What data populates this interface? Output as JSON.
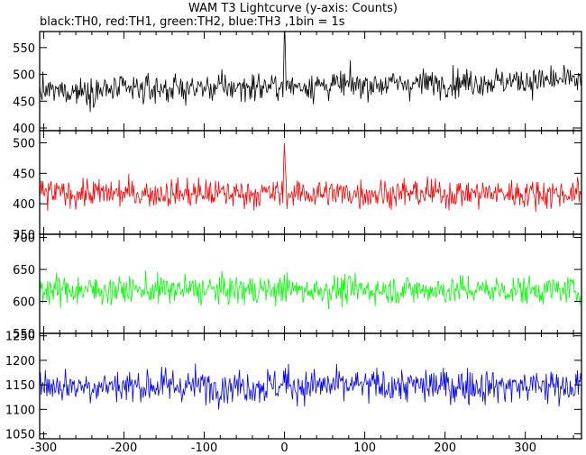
{
  "chart_data": {
    "type": "line",
    "title": "WAM T3 Lightcurve (y-axis: Counts)",
    "subtitle": "black:TH0, red:TH1, green:TH2, blue:TH3 ,1bin = 1s",
    "xlim": [
      -305,
      370
    ],
    "xticks": [
      -300,
      -200,
      -100,
      0,
      100,
      200,
      300
    ],
    "panels": [
      {
        "name": "TH0",
        "color": "#000000",
        "ylim": [
          395,
          580
        ],
        "yticks": [
          400,
          450,
          500,
          550
        ],
        "baseline": 468,
        "trend": 22,
        "noise": 22,
        "peak": 100
      },
      {
        "name": "TH1",
        "color": "#ff0000",
        "ylim": [
          350,
          520
        ],
        "yticks": [
          350,
          400,
          450,
          500
        ],
        "baseline": 417,
        "trend": 0,
        "noise": 20,
        "peak": 80
      },
      {
        "name": "TH2",
        "color": "#00ff00",
        "ylim": [
          550,
          705
        ],
        "yticks": [
          550,
          600,
          650,
          700
        ],
        "baseline": 618,
        "trend": 0,
        "noise": 19,
        "peak": 20
      },
      {
        "name": "TH3",
        "color": "#0000ff",
        "ylim": [
          1040,
          1255
        ],
        "yticks": [
          1050,
          1100,
          1150,
          1200,
          1250
        ],
        "baseline": 1148,
        "trend": 0,
        "noise": 30,
        "peak": 30
      }
    ]
  }
}
